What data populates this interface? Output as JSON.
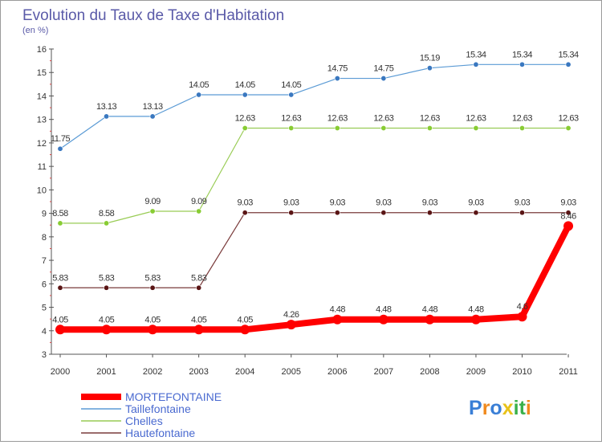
{
  "title": "Evolution du Taux de Taxe d'Habitation",
  "subtitle": "(en %)",
  "watermark": "Proxiti",
  "colors": {
    "axis": "#555555",
    "grid": "#dddddd",
    "title": "#5a5aa8",
    "legend_text": "#4a6ad0",
    "watermark_letters": [
      "#3a7fd6",
      "#f08a1e",
      "#3a7fd6",
      "#e8c21a",
      "#3ab04a",
      "#3ab04a",
      "#f08a1e"
    ]
  },
  "chart_data": {
    "type": "line",
    "title": "Evolution du Taux de Taxe d'Habitation",
    "subtitle": "(en %)",
    "xlabel": "",
    "ylabel": "",
    "x": [
      "2000",
      "2001",
      "2002",
      "2003",
      "2004",
      "2005",
      "2006",
      "2007",
      "2008",
      "2009",
      "2010",
      "2011"
    ],
    "ylim": [
      3,
      16
    ],
    "yticks": [
      "3",
      "4",
      "5",
      "6",
      "7",
      "8",
      "9",
      "10",
      "11",
      "12",
      "13",
      "14",
      "15",
      "16"
    ],
    "grid": false,
    "legend_position": "bottom-left",
    "series": [
      {
        "name": "Taillefontaine",
        "color": "#5b9bd5",
        "marker_color": "#3a78c0",
        "width": "thin",
        "values": [
          11.75,
          13.13,
          13.13,
          14.05,
          14.05,
          14.05,
          14.75,
          14.75,
          15.19,
          15.34,
          15.34,
          15.34
        ],
        "labels": [
          "11.75",
          "13.13",
          "13.13",
          "14.05",
          "14.05",
          "14.05",
          "14.75",
          "14.75",
          "15.19",
          "15.34",
          "15.34",
          "15.34"
        ]
      },
      {
        "name": "Chelles",
        "color": "#99cc55",
        "marker_color": "#88cc33",
        "width": "thin",
        "values": [
          8.58,
          8.58,
          9.09,
          9.09,
          12.63,
          12.63,
          12.63,
          12.63,
          12.63,
          12.63,
          12.63,
          12.63
        ],
        "labels": [
          "8.58",
          "8.58",
          "9.09",
          "9.09",
          "12.63",
          "12.63",
          "12.63",
          "12.63",
          "12.63",
          "12.63",
          "12.63",
          "12.63"
        ]
      },
      {
        "name": "Hautefontaine",
        "color": "#7a3b3b",
        "marker_color": "#5a1515",
        "width": "thin",
        "values": [
          5.83,
          5.83,
          5.83,
          5.83,
          9.03,
          9.03,
          9.03,
          9.03,
          9.03,
          9.03,
          9.03,
          9.03
        ],
        "labels": [
          "5.83",
          "5.83",
          "5.83",
          "5.83",
          "9.03",
          "9.03",
          "9.03",
          "9.03",
          "9.03",
          "9.03",
          "9.03",
          "9.03"
        ]
      },
      {
        "name": "MORTEFONTAINE",
        "color": "#ff0000",
        "marker_color": "#ff0000",
        "width": "thick",
        "values": [
          4.05,
          4.05,
          4.05,
          4.05,
          4.05,
          4.26,
          4.48,
          4.48,
          4.48,
          4.48,
          4.6,
          8.46
        ],
        "labels": [
          "4.05",
          "4.05",
          "4.05",
          "4.05",
          "4.05",
          "4.26",
          "4.48",
          "4.48",
          "4.48",
          "4.48",
          "4.6",
          "8.46"
        ]
      }
    ],
    "legend_order": [
      "MORTEFONTAINE",
      "Taillefontaine",
      "Chelles",
      "Hautefontaine"
    ]
  }
}
